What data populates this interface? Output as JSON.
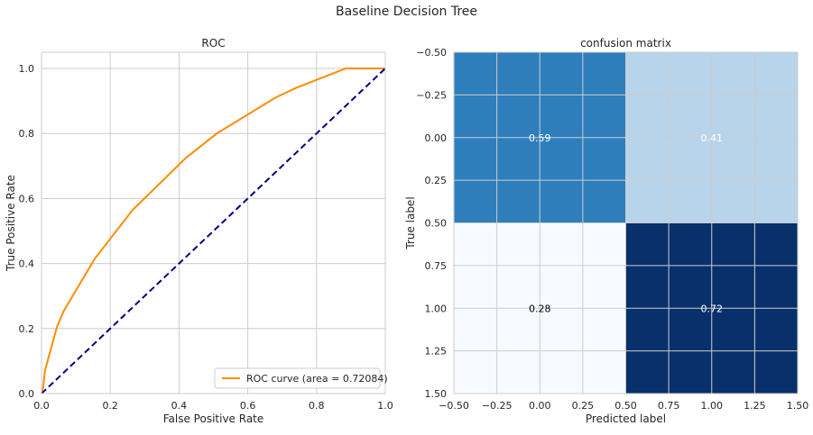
{
  "figure": {
    "title": "Baseline Decision Tree"
  },
  "chart_data": [
    {
      "type": "line",
      "title": "ROC",
      "xlabel": "False Positive Rate",
      "ylabel": "True Positive Rate",
      "xlim": [
        0.0,
        1.0
      ],
      "ylim": [
        0.0,
        1.05
      ],
      "xticks": [
        "0.0",
        "0.2",
        "0.4",
        "0.6",
        "0.8",
        "1.0"
      ],
      "yticks": [
        "0.0",
        "0.2",
        "0.4",
        "0.6",
        "0.8",
        "1.0"
      ],
      "grid": true,
      "legend_position": "lower-right",
      "series": [
        {
          "name": "ROC curve (area = 0.72084)",
          "color": "#ff8c00",
          "style": "solid",
          "x": [
            0.0,
            0.005,
            0.01,
            0.045,
            0.065,
            0.155,
            0.265,
            0.42,
            0.51,
            0.68,
            0.74,
            0.885,
            1.0
          ],
          "y": [
            0.0,
            0.02,
            0.07,
            0.205,
            0.255,
            0.415,
            0.565,
            0.725,
            0.8,
            0.91,
            0.94,
            1.0,
            1.0
          ]
        },
        {
          "color": "#000080",
          "style": "dashed",
          "x": [
            0.0,
            1.0
          ],
          "y": [
            0.0,
            1.0
          ]
        }
      ]
    },
    {
      "type": "heatmap",
      "title": "confusion matrix",
      "xlabel": "Predicted label",
      "ylabel": "True label",
      "xlim": [
        -0.5,
        1.5
      ],
      "ylim": [
        1.5,
        -0.5
      ],
      "xticks": [
        "−0.50",
        "−0.25",
        "0.00",
        "0.25",
        "0.50",
        "0.75",
        "1.00",
        "1.25",
        "1.50"
      ],
      "yticks": [
        "−0.50",
        "−0.25",
        "0.00",
        "0.25",
        "0.50",
        "0.75",
        "1.00",
        "1.25",
        "1.50"
      ],
      "grid": true,
      "colormap": "Blues",
      "cells": [
        {
          "row": 0,
          "col": 0,
          "value": 0.59,
          "label": "0.59",
          "color": "#2e7ebc",
          "text_color": "#ffffff"
        },
        {
          "row": 0,
          "col": 1,
          "value": 0.41,
          "label": "0.41",
          "color": "#b7d4ea",
          "text_color": "#ffffff"
        },
        {
          "row": 1,
          "col": 0,
          "value": 0.28,
          "label": "0.28",
          "color": "#f7fbff",
          "text_color": "#000000"
        },
        {
          "row": 1,
          "col": 1,
          "value": 0.72,
          "label": "0.72",
          "color": "#08306b",
          "text_color": "#ffffff"
        }
      ]
    }
  ]
}
